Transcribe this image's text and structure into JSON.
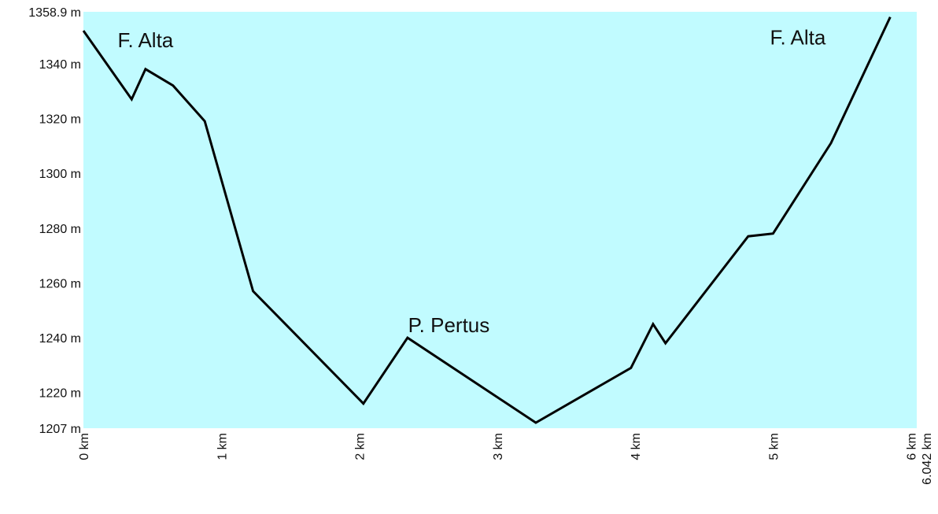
{
  "chart_data": {
    "type": "line",
    "title": "",
    "xlabel": "",
    "ylabel": "",
    "xlim": [
      0,
      6.042
    ],
    "ylim": [
      1207,
      1358.9
    ],
    "y_ticks": [
      {
        "value": 1207,
        "label": "1207 m"
      },
      {
        "value": 1220,
        "label": "1220 m"
      },
      {
        "value": 1240,
        "label": "1240 m"
      },
      {
        "value": 1260,
        "label": "1260 m"
      },
      {
        "value": 1280,
        "label": "1280 m"
      },
      {
        "value": 1300,
        "label": "1300 m"
      },
      {
        "value": 1320,
        "label": "1320 m"
      },
      {
        "value": 1340,
        "label": "1340 m"
      },
      {
        "value": 1358.9,
        "label": "1358.9 m"
      }
    ],
    "x_ticks": [
      {
        "value": 0,
        "label": "0 km"
      },
      {
        "value": 1,
        "label": "1 km"
      },
      {
        "value": 2,
        "label": "2 km"
      },
      {
        "value": 3,
        "label": "3 km"
      },
      {
        "value": 4,
        "label": "4 km"
      },
      {
        "value": 5,
        "label": "5 km"
      },
      {
        "value": 6,
        "label": "6 km"
      },
      {
        "value": 6.042,
        "label": "6.042 km"
      }
    ],
    "series": [
      {
        "x": [
          0,
          0.35,
          0.45,
          0.65,
          0.88,
          1.23,
          2.03,
          2.35,
          3.28,
          3.97,
          4.13,
          4.22,
          4.82,
          5.0,
          5.42,
          5.85
        ],
        "y": [
          1352,
          1327,
          1338,
          1332,
          1319,
          1257,
          1216,
          1240,
          1209,
          1229,
          1245,
          1238,
          1277,
          1278,
          1311,
          1357
        ]
      }
    ],
    "annotations": [
      {
        "text": "F. Alta",
        "x": 0.45,
        "y": 1346
      },
      {
        "text": "P. Pertus",
        "x": 2.65,
        "y": 1242
      },
      {
        "text": "F. Alta",
        "x": 5.18,
        "y": 1347
      }
    ],
    "grid": false,
    "legend": "none",
    "colors": {
      "plot_background": "#c1fbff",
      "line": "#000000",
      "text": "#111111"
    }
  }
}
